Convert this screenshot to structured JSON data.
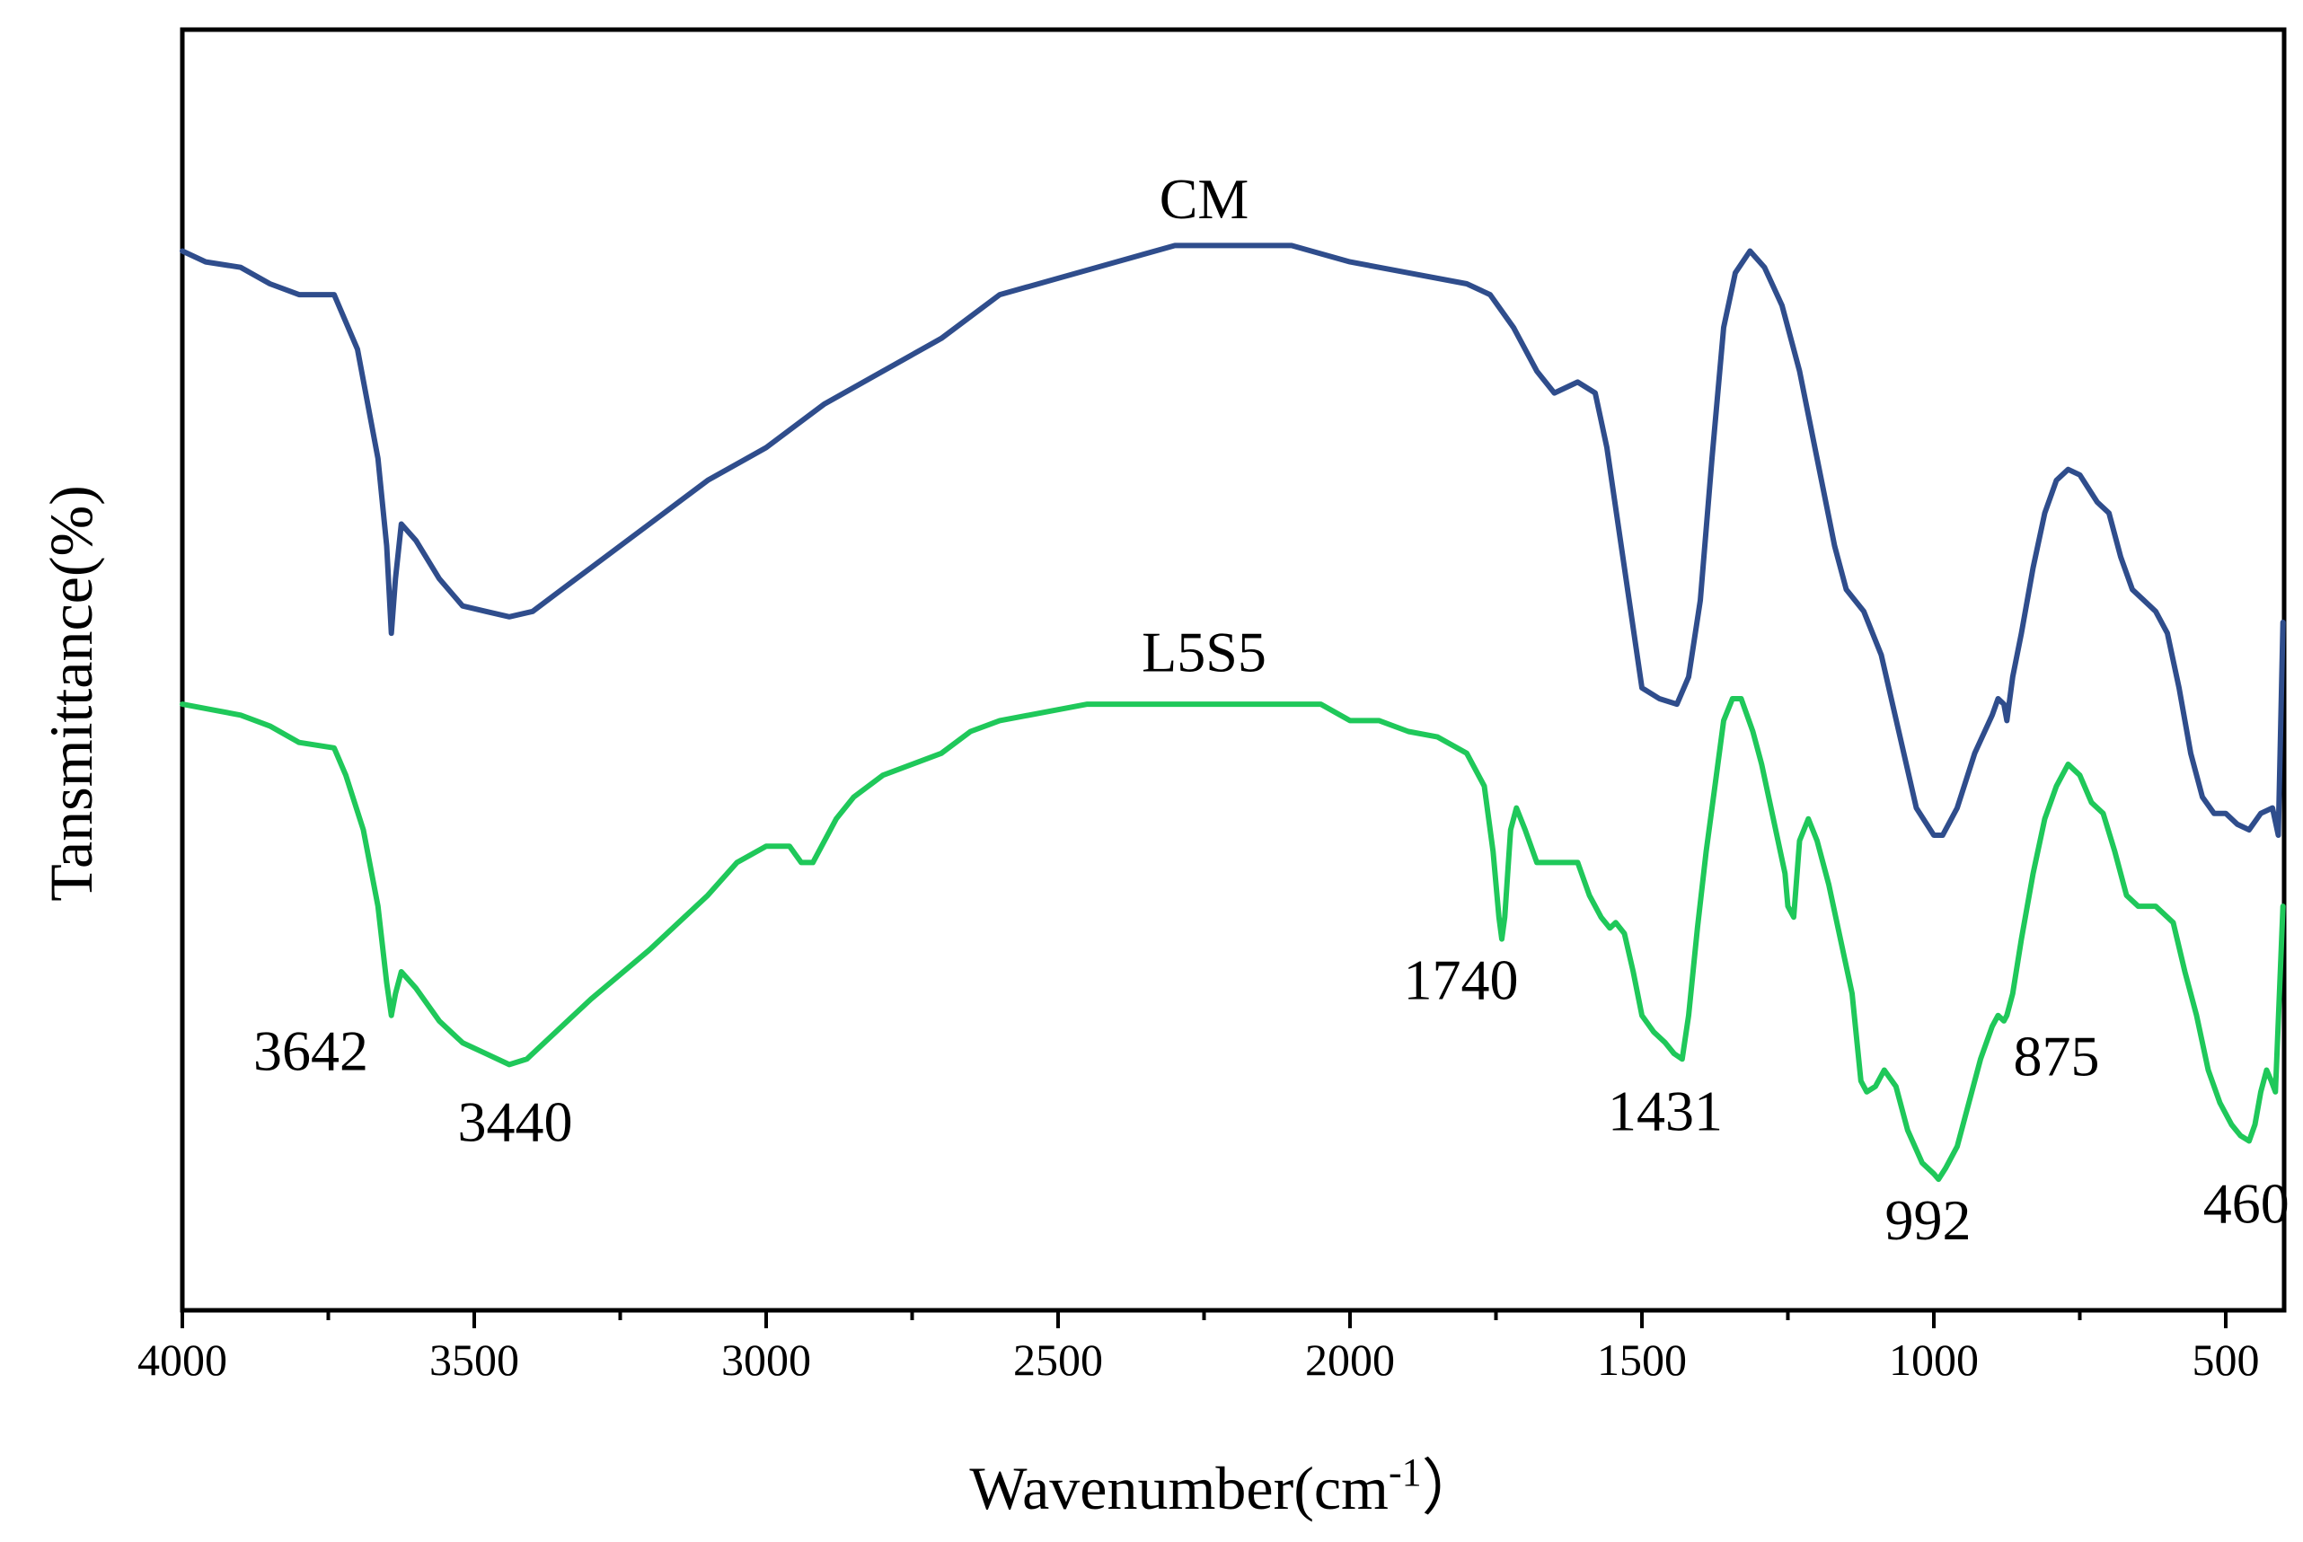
{
  "chart_data": {
    "type": "line",
    "title": "",
    "xlabel": "Wavenumber(cm",
    "xlabel_sup": "-1",
    "xlabel_close": "）",
    "ylabel": "Tansmittance(%)",
    "xlim": [
      4000,
      400
    ],
    "x_reversed": true,
    "y_ticks_shown": false,
    "xticks": [
      4000,
      3500,
      3000,
      2500,
      2000,
      1500,
      1000,
      500
    ],
    "xtick_labels": [
      "4000",
      "3500",
      "3000",
      "2500",
      "2000",
      "1500",
      "1000",
      "500"
    ],
    "xticks_minor": [
      3750,
      3250,
      2750,
      2250,
      1750,
      1250,
      750
    ],
    "ylim": [
      0,
      100
    ],
    "series": [
      {
        "name": "CM",
        "color": "#2f4d8c",
        "points": [
          [
            4000,
            97
          ],
          [
            3960,
            96
          ],
          [
            3900,
            95.5
          ],
          [
            3850,
            94
          ],
          [
            3800,
            93
          ],
          [
            3740,
            93
          ],
          [
            3700,
            88
          ],
          [
            3665,
            78
          ],
          [
            3650,
            70
          ],
          [
            3642,
            62
          ],
          [
            3635,
            67
          ],
          [
            3625,
            72
          ],
          [
            3600,
            70.5
          ],
          [
            3560,
            67
          ],
          [
            3520,
            64.5
          ],
          [
            3480,
            64
          ],
          [
            3440,
            63.5
          ],
          [
            3400,
            64
          ],
          [
            3350,
            66
          ],
          [
            3300,
            68
          ],
          [
            3200,
            72
          ],
          [
            3100,
            76
          ],
          [
            3000,
            79
          ],
          [
            2900,
            83
          ],
          [
            2800,
            86
          ],
          [
            2700,
            89
          ],
          [
            2600,
            93
          ],
          [
            2500,
            94.5
          ],
          [
            2400,
            96
          ],
          [
            2300,
            97.5
          ],
          [
            2200,
            97.5
          ],
          [
            2100,
            97.5
          ],
          [
            2000,
            96
          ],
          [
            1900,
            95
          ],
          [
            1800,
            94
          ],
          [
            1760,
            93
          ],
          [
            1720,
            90
          ],
          [
            1680,
            86
          ],
          [
            1650,
            84
          ],
          [
            1610,
            85
          ],
          [
            1580,
            84
          ],
          [
            1560,
            79
          ],
          [
            1530,
            68
          ],
          [
            1500,
            57
          ],
          [
            1470,
            56
          ],
          [
            1440,
            55.5
          ],
          [
            1420,
            58
          ],
          [
            1400,
            65
          ],
          [
            1380,
            78
          ],
          [
            1360,
            90
          ],
          [
            1340,
            95
          ],
          [
            1315,
            97
          ],
          [
            1290,
            95.5
          ],
          [
            1260,
            92
          ],
          [
            1230,
            86
          ],
          [
            1200,
            78
          ],
          [
            1170,
            70
          ],
          [
            1150,
            66
          ],
          [
            1120,
            64
          ],
          [
            1090,
            60
          ],
          [
            1060,
            53
          ],
          [
            1030,
            46
          ],
          [
            1000,
            43.5
          ],
          [
            985,
            43.5
          ],
          [
            960,
            46
          ],
          [
            930,
            51
          ],
          [
            900,
            54.5
          ],
          [
            890,
            56
          ],
          [
            880,
            55.5
          ],
          [
            875,
            54
          ],
          [
            865,
            58
          ],
          [
            850,
            62
          ],
          [
            830,
            68
          ],
          [
            810,
            73
          ],
          [
            790,
            76
          ],
          [
            770,
            77
          ],
          [
            750,
            76.5
          ],
          [
            720,
            74
          ],
          [
            700,
            73
          ],
          [
            680,
            69
          ],
          [
            660,
            66
          ],
          [
            640,
            65
          ],
          [
            620,
            64
          ],
          [
            600,
            62
          ],
          [
            580,
            57
          ],
          [
            560,
            51
          ],
          [
            540,
            47
          ],
          [
            520,
            45.5
          ],
          [
            500,
            45.5
          ],
          [
            480,
            44.5
          ],
          [
            460,
            44
          ],
          [
            440,
            45.5
          ],
          [
            420,
            46
          ],
          [
            410,
            43.5
          ],
          [
            402,
            63
          ]
        ]
      },
      {
        "name": "L5S5",
        "color": "#1fc85a",
        "points": [
          [
            4000,
            55.5
          ],
          [
            3950,
            55
          ],
          [
            3900,
            54.5
          ],
          [
            3850,
            53.5
          ],
          [
            3800,
            52
          ],
          [
            3740,
            51.5
          ],
          [
            3720,
            49
          ],
          [
            3690,
            44
          ],
          [
            3665,
            37
          ],
          [
            3650,
            30
          ],
          [
            3642,
            27
          ],
          [
            3635,
            29
          ],
          [
            3625,
            31
          ],
          [
            3600,
            29.5
          ],
          [
            3560,
            26.5
          ],
          [
            3520,
            24.5
          ],
          [
            3480,
            23.5
          ],
          [
            3440,
            22.5
          ],
          [
            3410,
            23
          ],
          [
            3380,
            24.5
          ],
          [
            3300,
            28.5
          ],
          [
            3200,
            33
          ],
          [
            3100,
            38
          ],
          [
            3050,
            41
          ],
          [
            3000,
            42.5
          ],
          [
            2960,
            42.5
          ],
          [
            2940,
            41
          ],
          [
            2920,
            41
          ],
          [
            2880,
            45
          ],
          [
            2850,
            47
          ],
          [
            2800,
            49
          ],
          [
            2700,
            51
          ],
          [
            2650,
            53
          ],
          [
            2600,
            54
          ],
          [
            2500,
            55
          ],
          [
            2450,
            55.5
          ],
          [
            2400,
            55.5
          ],
          [
            2300,
            55.5
          ],
          [
            2200,
            55.5
          ],
          [
            2100,
            55.5
          ],
          [
            2050,
            55.5
          ],
          [
            2000,
            54
          ],
          [
            1950,
            54
          ],
          [
            1900,
            53
          ],
          [
            1850,
            52.5
          ],
          [
            1800,
            51
          ],
          [
            1770,
            48
          ],
          [
            1755,
            42
          ],
          [
            1745,
            36
          ],
          [
            1740,
            34
          ],
          [
            1735,
            36
          ],
          [
            1725,
            44
          ],
          [
            1715,
            46
          ],
          [
            1700,
            44
          ],
          [
            1680,
            41
          ],
          [
            1650,
            41
          ],
          [
            1610,
            41
          ],
          [
            1590,
            38
          ],
          [
            1570,
            36
          ],
          [
            1555,
            35
          ],
          [
            1545,
            35.5
          ],
          [
            1530,
            34.5
          ],
          [
            1515,
            31
          ],
          [
            1500,
            27
          ],
          [
            1480,
            25.5
          ],
          [
            1460,
            24.5
          ],
          [
            1445,
            23.5
          ],
          [
            1431,
            23
          ],
          [
            1420,
            27
          ],
          [
            1405,
            35
          ],
          [
            1390,
            42
          ],
          [
            1375,
            48
          ],
          [
            1360,
            54
          ],
          [
            1345,
            56
          ],
          [
            1330,
            56
          ],
          [
            1310,
            53
          ],
          [
            1295,
            50
          ],
          [
            1275,
            45
          ],
          [
            1255,
            40
          ],
          [
            1250,
            37
          ],
          [
            1240,
            36
          ],
          [
            1230,
            43
          ],
          [
            1215,
            45
          ],
          [
            1200,
            43
          ],
          [
            1180,
            39
          ],
          [
            1160,
            34
          ],
          [
            1140,
            29
          ],
          [
            1125,
            21
          ],
          [
            1115,
            20
          ],
          [
            1100,
            20.5
          ],
          [
            1085,
            22
          ],
          [
            1065,
            20.5
          ],
          [
            1045,
            16.5
          ],
          [
            1020,
            13.5
          ],
          [
            1000,
            12.5
          ],
          [
            992,
            12
          ],
          [
            980,
            13
          ],
          [
            960,
            15
          ],
          [
            940,
            19
          ],
          [
            920,
            23
          ],
          [
            900,
            26
          ],
          [
            890,
            27
          ],
          [
            880,
            26.5
          ],
          [
            875,
            27
          ],
          [
            865,
            29
          ],
          [
            850,
            34
          ],
          [
            830,
            40
          ],
          [
            810,
            45
          ],
          [
            790,
            48
          ],
          [
            770,
            50
          ],
          [
            750,
            49
          ],
          [
            730,
            46.5
          ],
          [
            710,
            45.5
          ],
          [
            690,
            42
          ],
          [
            670,
            38
          ],
          [
            650,
            37
          ],
          [
            620,
            37
          ],
          [
            590,
            35.5
          ],
          [
            570,
            31
          ],
          [
            550,
            27
          ],
          [
            530,
            22
          ],
          [
            510,
            19
          ],
          [
            490,
            17
          ],
          [
            475,
            16
          ],
          [
            460,
            15.5
          ],
          [
            450,
            17
          ],
          [
            440,
            20
          ],
          [
            430,
            22
          ],
          [
            422,
            21
          ],
          [
            415,
            20
          ],
          [
            402,
            37
          ]
        ]
      }
    ],
    "series_labels": [
      {
        "text": "CM",
        "x": 2250,
        "y": 100
      },
      {
        "text": "L5S5",
        "x": 2250,
        "y": 58.5
      }
    ],
    "annotations": [
      {
        "text": "3642",
        "x": 3780,
        "y": 22
      },
      {
        "text": "3440",
        "x": 3430,
        "y": 15.5
      },
      {
        "text": "1740",
        "x": 1810,
        "y": 28.5
      },
      {
        "text": "1431",
        "x": 1460,
        "y": 16.5
      },
      {
        "text": "992",
        "x": 1010,
        "y": 6.5
      },
      {
        "text": "875",
        "x": 790,
        "y": 21.5
      },
      {
        "text": "460",
        "x": 465,
        "y": 8
      }
    ]
  }
}
